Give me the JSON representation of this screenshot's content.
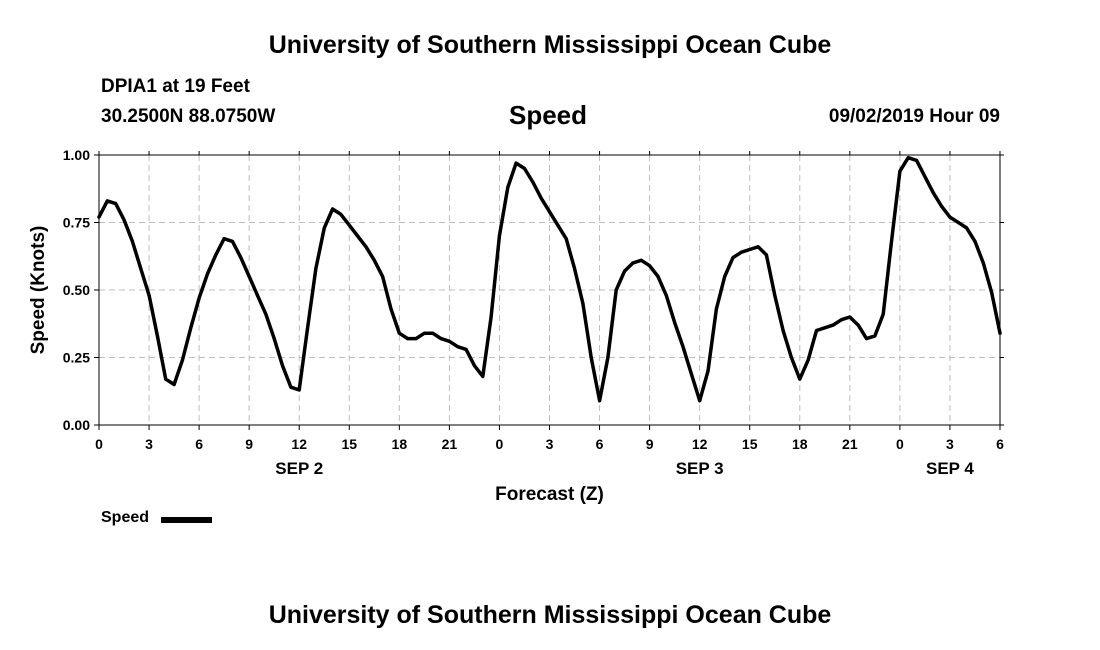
{
  "page_title": "University of Southern Mississippi Ocean Cube",
  "footer_title": "University of Southern Mississippi Ocean Cube",
  "station": "DPIA1 at 19 Feet",
  "location": "30.2500N 88.0750W",
  "variable": "Speed",
  "issued": "09/02/2019 Hour 09",
  "legend_label": "Speed",
  "colors": {
    "series": "#000000",
    "grid": "#bdbdbd"
  },
  "chart_data": {
    "type": "line",
    "title": "Speed",
    "xlabel": "Forecast (Z)",
    "ylabel": "Speed (Knots)",
    "ylim": [
      0,
      1
    ],
    "xlim": [
      0,
      54
    ],
    "yticks": [
      "0.00",
      "0.25",
      "0.50",
      "0.75",
      "1.00"
    ],
    "xticks": [
      "0",
      "3",
      "6",
      "9",
      "12",
      "15",
      "18",
      "21",
      "0",
      "3",
      "6",
      "9",
      "12",
      "15",
      "18",
      "21",
      "0",
      "3",
      "6"
    ],
    "day_labels": [
      {
        "label": "SEP 2",
        "at_hour": 12
      },
      {
        "label": "SEP 3",
        "at_hour": 36
      },
      {
        "label": "SEP 4",
        "at_hour": 51
      }
    ],
    "grid": true,
    "series": [
      {
        "name": "Speed",
        "x": [
          0,
          0.5,
          1,
          1.5,
          2,
          2.5,
          3,
          3.5,
          4,
          4.5,
          5,
          5.5,
          6,
          6.5,
          7,
          7.5,
          8,
          8.5,
          9,
          9.5,
          10,
          10.5,
          11,
          11.5,
          12,
          12.5,
          13,
          13.5,
          14,
          14.5,
          15,
          15.5,
          16,
          16.5,
          17,
          17.5,
          18,
          18.5,
          19,
          19.5,
          20,
          20.5,
          21,
          21.5,
          22,
          22.5,
          23,
          23.5,
          24,
          24.5,
          25,
          25.5,
          26,
          26.5,
          27,
          27.5,
          28,
          28.5,
          29,
          29.5,
          30,
          30.5,
          31,
          31.5,
          32,
          32.5,
          33,
          33.5,
          34,
          34.5,
          35,
          35.5,
          36,
          36.5,
          37,
          37.5,
          38,
          38.5,
          39,
          39.5,
          40,
          40.5,
          41,
          41.5,
          42,
          42.5,
          43,
          43.5,
          44,
          44.5,
          45,
          45.5,
          46,
          46.5,
          47,
          47.5,
          48,
          48.5,
          49,
          49.5,
          50,
          50.5,
          51,
          51.5,
          52,
          52.5,
          53,
          53.5,
          54
        ],
        "y": [
          0.77,
          0.83,
          0.82,
          0.76,
          0.68,
          0.58,
          0.48,
          0.33,
          0.17,
          0.15,
          0.24,
          0.36,
          0.47,
          0.56,
          0.63,
          0.69,
          0.68,
          0.62,
          0.55,
          0.48,
          0.41,
          0.32,
          0.22,
          0.14,
          0.13,
          0.36,
          0.58,
          0.73,
          0.8,
          0.78,
          0.74,
          0.7,
          0.66,
          0.61,
          0.55,
          0.43,
          0.34,
          0.32,
          0.32,
          0.34,
          0.34,
          0.32,
          0.31,
          0.29,
          0.28,
          0.22,
          0.18,
          0.4,
          0.7,
          0.88,
          0.97,
          0.95,
          0.9,
          0.84,
          0.79,
          0.74,
          0.69,
          0.58,
          0.45,
          0.25,
          0.09,
          0.25,
          0.5,
          0.57,
          0.6,
          0.61,
          0.59,
          0.55,
          0.48,
          0.38,
          0.29,
          0.19,
          0.09,
          0.2,
          0.43,
          0.55,
          0.62,
          0.64,
          0.65,
          0.66,
          0.63,
          0.48,
          0.35,
          0.25,
          0.17,
          0.24,
          0.35,
          0.36,
          0.37,
          0.39,
          0.4,
          0.37,
          0.32,
          0.33,
          0.41,
          0.68,
          0.94,
          0.99,
          0.98,
          0.92,
          0.86,
          0.81,
          0.77,
          0.75,
          0.73,
          0.68,
          0.6,
          0.49,
          0.34
        ]
      }
    ]
  }
}
